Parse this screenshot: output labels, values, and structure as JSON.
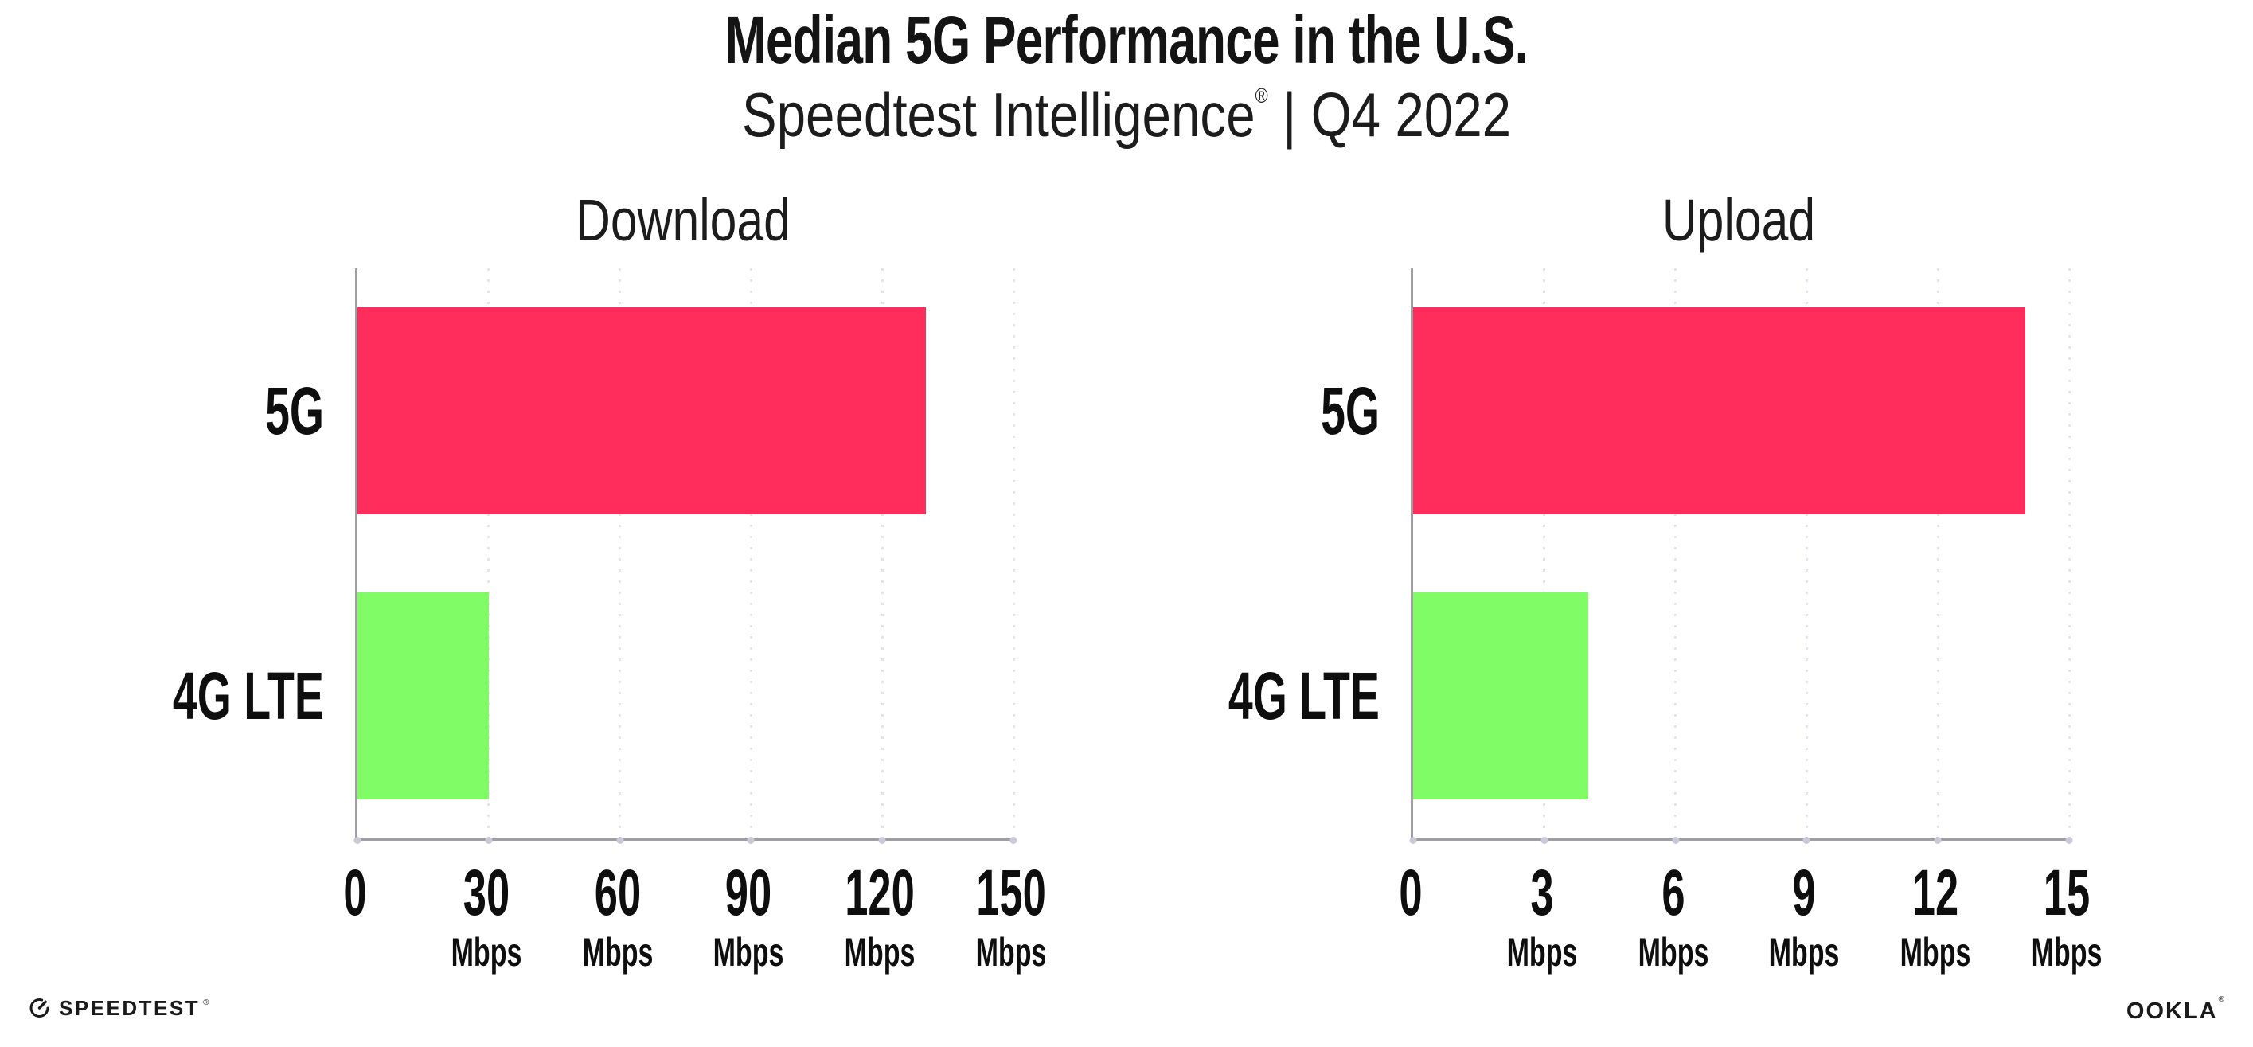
{
  "title": "Median 5G Performance in the U.S.",
  "subtitle": {
    "brand": "Speedtest Intelligence",
    "reg_mark": "®",
    "separator": "|",
    "period": "Q4 2022"
  },
  "footer": {
    "speedtest_label": "SPEEDTEST",
    "speedtest_mark": "®",
    "speedtest_icon": "gauge-icon",
    "ookla_label": "OOKLA",
    "ookla_mark": "®"
  },
  "colors": {
    "bar_5g": "#FF2D5B",
    "bar_4g_lte": "#80FC66",
    "gridline": "#E4E4EE",
    "axis": "#9E9EA3",
    "text": "#111111"
  },
  "chart_data": [
    {
      "type": "bar",
      "orientation": "horizontal",
      "title": "Download",
      "categories": [
        "5G",
        "4G LTE"
      ],
      "values": [
        130,
        30
      ],
      "unit": "Mbps",
      "xlim": [
        0,
        150
      ],
      "xticks": [
        0,
        30,
        60,
        90,
        120,
        150
      ],
      "bar_colors": [
        "#FF2D5B",
        "#80FC66"
      ],
      "grid": "dotted-vertical-gridlines",
      "legend": "none"
    },
    {
      "type": "bar",
      "orientation": "horizontal",
      "title": "Upload",
      "categories": [
        "5G",
        "4G LTE"
      ],
      "values": [
        14,
        4
      ],
      "unit": "Mbps",
      "xlim": [
        0,
        15
      ],
      "xticks": [
        0,
        3,
        6,
        9,
        12,
        15
      ],
      "bar_colors": [
        "#FF2D5B",
        "#80FC66"
      ],
      "grid": "dotted-vertical-gridlines",
      "legend": "none"
    }
  ]
}
